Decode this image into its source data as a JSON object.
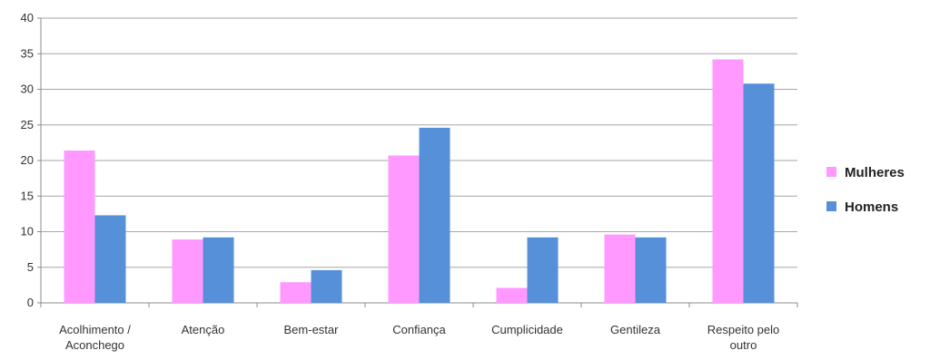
{
  "chart_data": {
    "type": "bar",
    "title": "",
    "xlabel": "",
    "ylabel": "",
    "ylim": [
      0,
      40
    ],
    "yticks": [
      0,
      5,
      10,
      15,
      20,
      25,
      30,
      35,
      40
    ],
    "grid": true,
    "legend_position": "right",
    "categories": [
      [
        "Acolhimento /",
        "Aconchego"
      ],
      [
        "Atenção"
      ],
      [
        "Bem-estar"
      ],
      [
        "Confiança"
      ],
      [
        "Cumplicidade"
      ],
      [
        "Gentileza"
      ],
      [
        "Respeito pelo",
        "outro"
      ]
    ],
    "series": [
      {
        "name": "Mulheres",
        "color": "#ff99ff",
        "values": [
          21.4,
          8.9,
          2.9,
          20.7,
          2.1,
          9.6,
          34.2
        ]
      },
      {
        "name": "Homens",
        "color": "#5590d9",
        "values": [
          12.3,
          9.2,
          4.6,
          24.6,
          9.2,
          9.2,
          30.8
        ]
      }
    ]
  }
}
